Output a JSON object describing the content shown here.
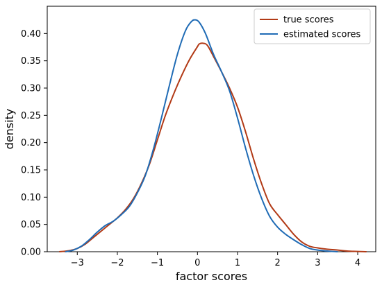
{
  "chart_data": {
    "type": "line",
    "title": "",
    "xlabel": "factor scores",
    "ylabel": "density",
    "xlim": [
      -3.75,
      4.45
    ],
    "ylim": [
      0.0,
      0.45
    ],
    "x_ticks": [
      -3,
      -2,
      -1,
      0,
      1,
      2,
      3,
      4
    ],
    "x_tick_labels": [
      "−3",
      "−2",
      "−1",
      "0",
      "1",
      "2",
      "3",
      "4"
    ],
    "y_ticks": [
      0.0,
      0.05,
      0.1,
      0.15,
      0.2,
      0.25,
      0.3,
      0.35,
      0.4
    ],
    "y_tick_labels": [
      "0.00",
      "0.05",
      "0.10",
      "0.15",
      "0.20",
      "0.25",
      "0.30",
      "0.35",
      "0.40"
    ],
    "grid": false,
    "legend_position": "top-right",
    "series": [
      {
        "name": "true scores",
        "color": "#b23a16",
        "points": [
          [
            -3.45,
            0.0
          ],
          [
            -3.2,
            0.002
          ],
          [
            -3.0,
            0.006
          ],
          [
            -2.8,
            0.014
          ],
          [
            -2.6,
            0.026
          ],
          [
            -2.4,
            0.038
          ],
          [
            -2.2,
            0.05
          ],
          [
            -2.0,
            0.062
          ],
          [
            -1.8,
            0.077
          ],
          [
            -1.6,
            0.097
          ],
          [
            -1.4,
            0.125
          ],
          [
            -1.2,
            0.16
          ],
          [
            -1.0,
            0.205
          ],
          [
            -0.8,
            0.25
          ],
          [
            -0.6,
            0.288
          ],
          [
            -0.4,
            0.322
          ],
          [
            -0.2,
            0.352
          ],
          [
            0.0,
            0.376
          ],
          [
            0.05,
            0.381
          ],
          [
            0.15,
            0.382
          ],
          [
            0.25,
            0.378
          ],
          [
            0.4,
            0.358
          ],
          [
            0.6,
            0.33
          ],
          [
            0.8,
            0.3
          ],
          [
            1.0,
            0.265
          ],
          [
            1.2,
            0.22
          ],
          [
            1.4,
            0.17
          ],
          [
            1.6,
            0.125
          ],
          [
            1.8,
            0.088
          ],
          [
            2.0,
            0.068
          ],
          [
            2.2,
            0.05
          ],
          [
            2.4,
            0.032
          ],
          [
            2.6,
            0.018
          ],
          [
            2.8,
            0.01
          ],
          [
            3.0,
            0.007
          ],
          [
            3.2,
            0.005
          ],
          [
            3.5,
            0.003
          ],
          [
            3.8,
            0.001
          ],
          [
            4.22,
            0.0
          ]
        ]
      },
      {
        "name": "estimated scores",
        "color": "#1f6bb5",
        "points": [
          [
            -3.3,
            0.0
          ],
          [
            -3.1,
            0.003
          ],
          [
            -2.9,
            0.01
          ],
          [
            -2.7,
            0.022
          ],
          [
            -2.5,
            0.036
          ],
          [
            -2.3,
            0.048
          ],
          [
            -2.1,
            0.056
          ],
          [
            -1.9,
            0.068
          ],
          [
            -1.7,
            0.083
          ],
          [
            -1.5,
            0.108
          ],
          [
            -1.3,
            0.14
          ],
          [
            -1.1,
            0.188
          ],
          [
            -0.9,
            0.245
          ],
          [
            -0.7,
            0.305
          ],
          [
            -0.5,
            0.362
          ],
          [
            -0.3,
            0.405
          ],
          [
            -0.15,
            0.422
          ],
          [
            -0.05,
            0.425
          ],
          [
            0.05,
            0.42
          ],
          [
            0.2,
            0.4
          ],
          [
            0.4,
            0.362
          ],
          [
            0.6,
            0.33
          ],
          [
            0.8,
            0.295
          ],
          [
            1.0,
            0.245
          ],
          [
            1.2,
            0.19
          ],
          [
            1.4,
            0.14
          ],
          [
            1.6,
            0.098
          ],
          [
            1.8,
            0.065
          ],
          [
            2.0,
            0.045
          ],
          [
            2.2,
            0.032
          ],
          [
            2.4,
            0.022
          ],
          [
            2.6,
            0.013
          ],
          [
            2.8,
            0.006
          ],
          [
            3.0,
            0.003
          ],
          [
            3.2,
            0.0015
          ],
          [
            3.5,
            0.0
          ]
        ]
      }
    ]
  }
}
